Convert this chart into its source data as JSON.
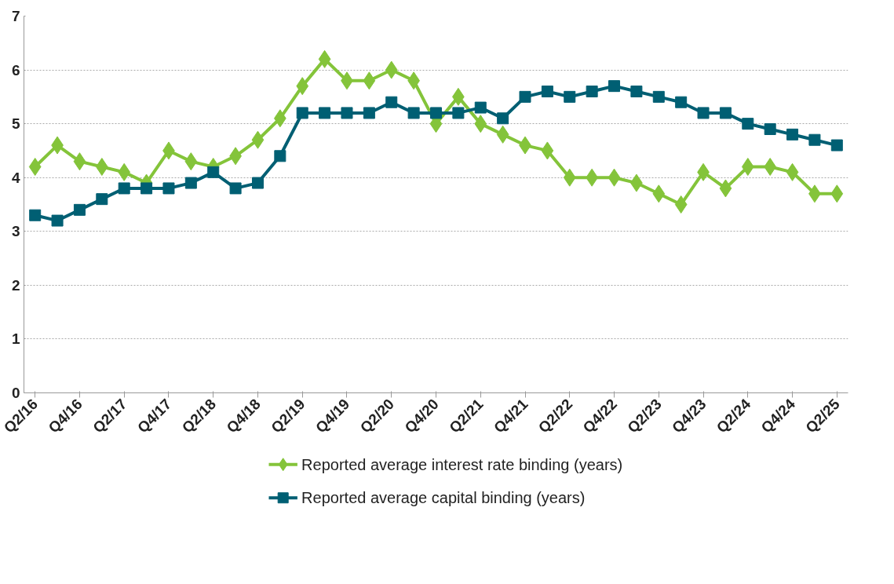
{
  "chart_data": {
    "type": "line",
    "categories": [
      "Q2/16",
      null,
      "Q4/16",
      null,
      "Q2/17",
      null,
      "Q4/17",
      null,
      "Q2/18",
      null,
      "Q4/18",
      null,
      "Q2/19",
      null,
      "Q4/19",
      null,
      "Q2/20",
      null,
      "Q4/20",
      null,
      "Q2/21",
      null,
      "Q4/21",
      null,
      "Q2/22",
      null,
      "Q4/22",
      null,
      "Q2/23",
      null,
      "Q4/23",
      null,
      "Q2/24",
      null,
      "Q4/24",
      null,
      "Q2/25"
    ],
    "series": [
      {
        "name": "Reported average interest rate binding (years)",
        "color": "#84c43a",
        "marker": "diamond",
        "values": [
          4.2,
          4.6,
          4.3,
          4.2,
          4.1,
          3.9,
          4.5,
          4.3,
          4.2,
          4.4,
          4.7,
          5.1,
          5.7,
          6.2,
          5.8,
          5.8,
          6.0,
          5.8,
          5.0,
          5.5,
          5.0,
          4.8,
          4.6,
          4.5,
          4.0,
          4.0,
          4.0,
          3.9,
          3.7,
          3.5,
          4.1,
          3.8,
          4.2,
          4.2,
          4.1,
          3.7,
          3.7
        ]
      },
      {
        "name": "Reported average capital binding (years)",
        "color": "#005f73",
        "marker": "square",
        "values": [
          3.3,
          3.2,
          3.4,
          3.6,
          3.8,
          3.8,
          3.8,
          3.9,
          4.1,
          3.8,
          3.9,
          4.4,
          5.2,
          5.2,
          5.2,
          5.2,
          5.4,
          5.2,
          5.2,
          5.2,
          5.3,
          5.1,
          5.5,
          5.6,
          5.5,
          5.6,
          5.7,
          5.6,
          5.5,
          5.4,
          5.2,
          5.2,
          5.0,
          4.9,
          4.8,
          4.7,
          4.6
        ]
      }
    ],
    "ylim": [
      0,
      7
    ],
    "yticks": [
      0,
      1,
      2,
      3,
      4,
      5,
      6,
      7
    ],
    "grid": "y",
    "legend": "bottom",
    "line_style": "solid"
  }
}
